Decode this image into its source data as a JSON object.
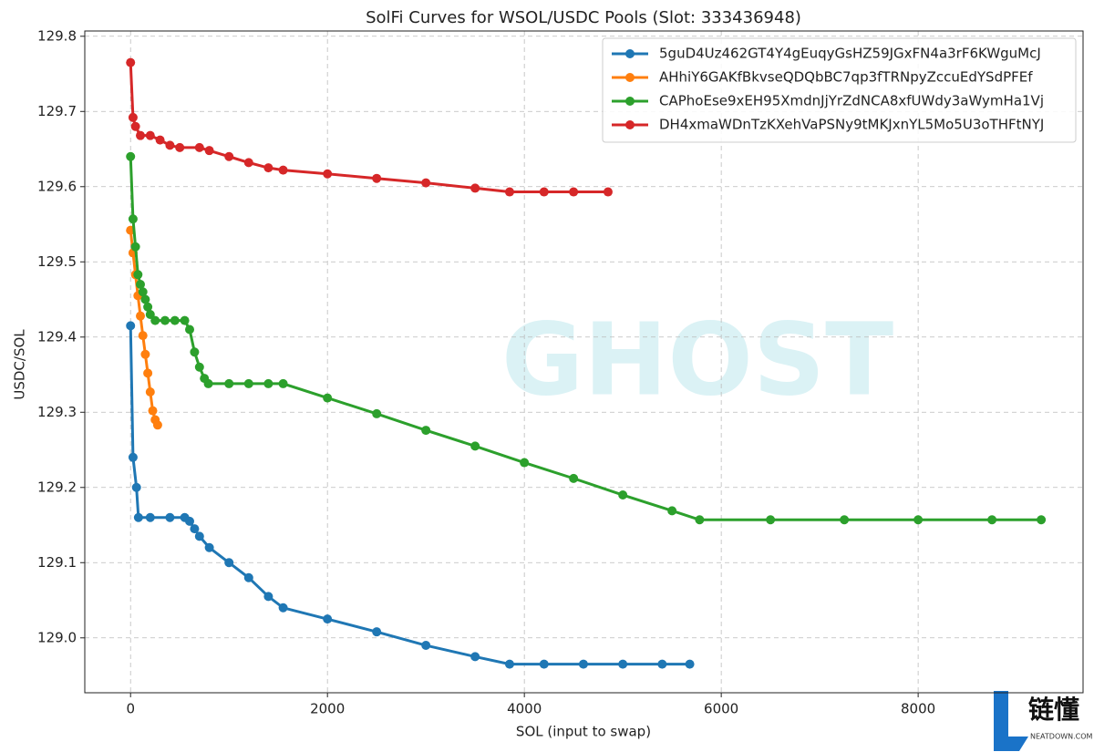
{
  "chart_data": {
    "type": "line",
    "title": "SolFi Curves for WSOL/USDC Pools (Slot: 333436948)",
    "x_label": "SOL (input to swap)",
    "y_label": "USDC/SOL",
    "xlim": [
      -465,
      9675
    ],
    "ylim": [
      128.927,
      129.807
    ],
    "xticks": [
      0,
      2000,
      4000,
      6000,
      8000
    ],
    "yticks": [
      {
        "value": 129.0,
        "label": "129.0"
      },
      129.1,
      129.2,
      129.3,
      129.4,
      129.5,
      129.6,
      129.7,
      129.8
    ],
    "grid": true,
    "legend": "upper right",
    "series": [
      {
        "name": "5guD4Uz462GT4Y4gEuqyGsHZ59JGxFN4a3rF6KWguMcJ",
        "color": "#1f77b4",
        "x": [
          0,
          25,
          60,
          80,
          200,
          400,
          550,
          600,
          650,
          700,
          800,
          1000,
          1200,
          1400,
          1550,
          2000,
          2500,
          3000,
          3500,
          3850,
          4200,
          4600,
          5000,
          5400,
          5680
        ],
        "values": [
          129.415,
          129.24,
          129.2,
          129.16,
          129.16,
          129.16,
          129.16,
          129.155,
          129.145,
          129.135,
          129.12,
          129.1,
          129.08,
          129.055,
          129.04,
          129.025,
          129.008,
          128.99,
          128.975,
          128.965,
          128.965,
          128.965,
          128.965,
          128.965,
          128.965
        ]
      },
      {
        "name": "AHhiY6GAKfBkvseQDQbBC7qp3fTRNpyZccuEdYSdPFEf",
        "color": "#ff7f0e",
        "x": [
          0,
          25,
          50,
          75,
          100,
          125,
          150,
          175,
          200,
          225,
          250,
          275
        ],
        "values": [
          129.542,
          129.512,
          129.483,
          129.455,
          129.428,
          129.402,
          129.377,
          129.352,
          129.327,
          129.302,
          129.29,
          129.283
        ]
      },
      {
        "name": "CAPhoEse9xEH95XmdnJjYrZdNCA8xfUWdy3aWymHa1Vj",
        "color": "#2ca02c",
        "x": [
          0,
          25,
          50,
          75,
          100,
          125,
          150,
          175,
          200,
          250,
          350,
          450,
          550,
          600,
          650,
          700,
          750,
          790,
          1000,
          1200,
          1400,
          1550,
          2000,
          2500,
          3000,
          3500,
          4000,
          4500,
          5000,
          5500,
          5780,
          6500,
          7250,
          8000,
          8750,
          9250
        ],
        "values": [
          129.64,
          129.557,
          129.52,
          129.483,
          129.47,
          129.46,
          129.45,
          129.44,
          129.43,
          129.422,
          129.422,
          129.422,
          129.422,
          129.41,
          129.38,
          129.36,
          129.345,
          129.338,
          129.338,
          129.338,
          129.338,
          129.338,
          129.319,
          129.298,
          129.276,
          129.255,
          129.233,
          129.212,
          129.19,
          129.169,
          129.157,
          129.157,
          129.157,
          129.157,
          129.157,
          129.157
        ]
      },
      {
        "name": "DH4xmaWDnTzKXehVaPSNy9tMKJxnYL5Mo5U3oTHFtNYJ",
        "color": "#d62728",
        "x": [
          0,
          25,
          50,
          100,
          200,
          300,
          400,
          500,
          700,
          800,
          1000,
          1200,
          1400,
          1550,
          2000,
          2500,
          3000,
          3500,
          3850,
          4200,
          4500,
          4850
        ],
        "values": [
          129.765,
          129.692,
          129.68,
          129.668,
          129.668,
          129.662,
          129.655,
          129.652,
          129.652,
          129.648,
          129.64,
          129.632,
          129.625,
          129.622,
          129.617,
          129.611,
          129.605,
          129.598,
          129.593,
          129.593,
          129.593,
          129.593
        ]
      }
    ]
  },
  "watermark": "GHOST",
  "badge": {
    "text": "链懂",
    "site": "NEATDOWN.COM"
  }
}
